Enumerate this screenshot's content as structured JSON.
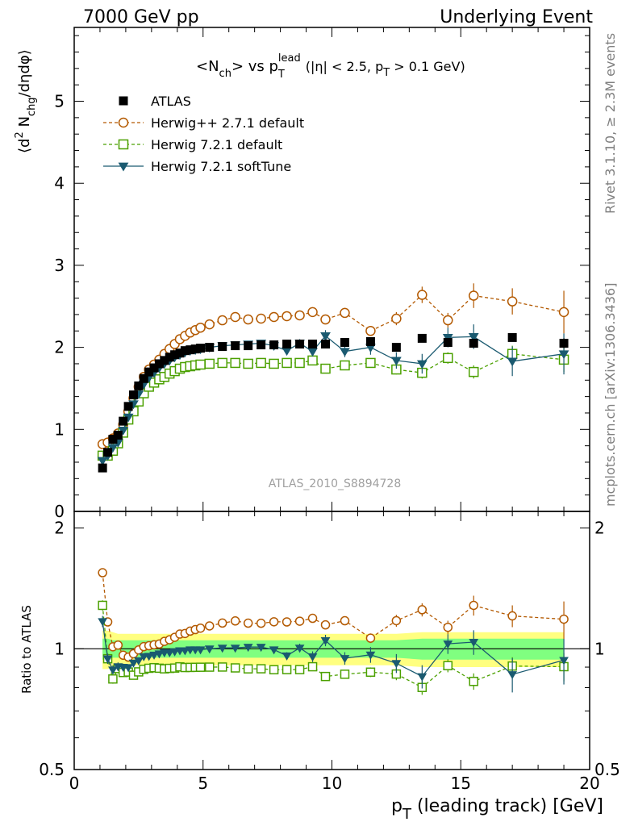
{
  "header": {
    "energy_label": "7000 GeV pp",
    "process_label": "Underlying Event"
  },
  "side_text": {
    "rivet": "Rivet 3.1.10, ≥ 2.3M events",
    "mcplots": "mcplots.cern.ch [arXiv:1306.3436]"
  },
  "plot_title": {
    "main": "<N",
    "sub_ch": "ch",
    "vs": "> vs p",
    "sub_T": "T",
    "sup_lead": "lead",
    "cuts_a": "(|η| < 2.5, p",
    "cuts_T": "T",
    "cuts_b": " > 0.1 GeV)"
  },
  "watermark": "ATLAS_2010_S8894728",
  "axes": {
    "main_ylabel_a": "⟨d",
    "main_ylabel_sup": "2",
    "main_ylabel_b": " N",
    "main_ylabel_sub": "chg",
    "main_ylabel_c": "/dηdφ⟩",
    "ratio_ylabel": "Ratio to ATLAS",
    "xlabel_a": "p",
    "xlabel_sub": "T",
    "xlabel_b": " (leading track) [GeV]"
  },
  "legend": [
    {
      "key": "data",
      "label": "ATLAS"
    },
    {
      "key": "h271",
      "label": "Herwig++ 2.7.1 default"
    },
    {
      "key": "h721",
      "label": "Herwig 7.2.1 default"
    },
    {
      "key": "soft",
      "label": "Herwig 7.2.1 softTune"
    }
  ],
  "colors": {
    "data": "#000000",
    "h271": "#b35900",
    "h721": "#4ba000",
    "soft": "#1a5a70",
    "band_outer": "#ffff80",
    "band_inner": "#80ff80"
  },
  "chart_data": {
    "type": "scatter",
    "xlim": [
      0,
      20
    ],
    "main_ylim": [
      0,
      5.9
    ],
    "ratio_ylim": [
      0.5,
      2.2
    ],
    "ratio_log_scale": true,
    "x_ticks": [
      "0",
      "5",
      "10",
      "15",
      "20"
    ],
    "main_y_ticks": [
      "0",
      "1",
      "2",
      "3",
      "4",
      "5"
    ],
    "ratio_y_ticks": [
      "0.5",
      "1",
      "2"
    ],
    "x": [
      1.1,
      1.3,
      1.5,
      1.7,
      1.9,
      2.1,
      2.3,
      2.5,
      2.7,
      2.9,
      3.1,
      3.3,
      3.5,
      3.7,
      3.9,
      4.1,
      4.3,
      4.5,
      4.7,
      4.9,
      5.25,
      5.75,
      6.25,
      6.75,
      7.25,
      7.75,
      8.25,
      8.75,
      9.25,
      9.75,
      10.5,
      11.5,
      12.5,
      13.5,
      14.5,
      15.5,
      17.0,
      19.0
    ],
    "series": [
      {
        "name": "ATLAS",
        "key": "data",
        "values": [
          0.53,
          0.72,
          0.88,
          0.93,
          1.1,
          1.28,
          1.42,
          1.53,
          1.62,
          1.7,
          1.75,
          1.8,
          1.84,
          1.88,
          1.91,
          1.93,
          1.96,
          1.97,
          1.98,
          1.99,
          2.0,
          2.01,
          2.02,
          2.02,
          2.03,
          2.03,
          2.04,
          2.04,
          2.04,
          2.04,
          2.06,
          2.07,
          2.0,
          2.11,
          2.06,
          2.05,
          2.12,
          2.05
        ],
        "errors": [
          0.02,
          0.02,
          0.02,
          0.02,
          0.02,
          0.02,
          0.02,
          0.02,
          0.02,
          0.02,
          0.02,
          0.02,
          0.02,
          0.02,
          0.02,
          0.02,
          0.02,
          0.02,
          0.02,
          0.02,
          0.02,
          0.02,
          0.02,
          0.02,
          0.02,
          0.02,
          0.02,
          0.02,
          0.03,
          0.03,
          0.03,
          0.03,
          0.04,
          0.04,
          0.05,
          0.05,
          0.05,
          0.06
        ]
      },
      {
        "name": "Herwig++ 2.7.1 default",
        "key": "h271",
        "values": [
          0.82,
          0.84,
          0.89,
          0.95,
          1.06,
          1.22,
          1.38,
          1.52,
          1.64,
          1.73,
          1.79,
          1.85,
          1.92,
          1.98,
          2.04,
          2.1,
          2.14,
          2.18,
          2.21,
          2.24,
          2.28,
          2.33,
          2.37,
          2.34,
          2.35,
          2.37,
          2.38,
          2.39,
          2.43,
          2.34,
          2.42,
          2.2,
          2.35,
          2.64,
          2.33,
          2.63,
          2.56,
          2.43
        ],
        "errors": [
          0.02,
          0.02,
          0.02,
          0.02,
          0.02,
          0.02,
          0.02,
          0.02,
          0.02,
          0.02,
          0.02,
          0.02,
          0.02,
          0.02,
          0.02,
          0.02,
          0.02,
          0.02,
          0.02,
          0.02,
          0.02,
          0.02,
          0.02,
          0.02,
          0.02,
          0.02,
          0.03,
          0.03,
          0.05,
          0.06,
          0.06,
          0.06,
          0.08,
          0.1,
          0.09,
          0.15,
          0.16,
          0.26
        ]
      },
      {
        "name": "Herwig 7.2.1 default",
        "key": "h721",
        "values": [
          0.68,
          0.68,
          0.74,
          0.83,
          0.96,
          1.12,
          1.22,
          1.34,
          1.44,
          1.52,
          1.57,
          1.61,
          1.64,
          1.68,
          1.71,
          1.74,
          1.76,
          1.77,
          1.78,
          1.79,
          1.8,
          1.81,
          1.81,
          1.8,
          1.81,
          1.8,
          1.81,
          1.81,
          1.84,
          1.74,
          1.78,
          1.81,
          1.73,
          1.69,
          1.87,
          1.7,
          1.92,
          1.85
        ],
        "errors": [
          0.02,
          0.02,
          0.02,
          0.02,
          0.02,
          0.02,
          0.02,
          0.02,
          0.02,
          0.02,
          0.02,
          0.02,
          0.02,
          0.02,
          0.02,
          0.02,
          0.02,
          0.02,
          0.02,
          0.02,
          0.02,
          0.02,
          0.02,
          0.02,
          0.02,
          0.02,
          0.02,
          0.03,
          0.04,
          0.04,
          0.04,
          0.05,
          0.06,
          0.07,
          0.07,
          0.08,
          0.1,
          0.15
        ]
      },
      {
        "name": "Herwig 7.2.1 softTune",
        "key": "soft",
        "values": [
          0.62,
          0.68,
          0.78,
          0.84,
          0.99,
          1.15,
          1.31,
          1.43,
          1.55,
          1.63,
          1.69,
          1.75,
          1.8,
          1.84,
          1.88,
          1.91,
          1.94,
          1.96,
          1.97,
          1.98,
          2.0,
          2.02,
          2.03,
          2.04,
          2.05,
          2.02,
          1.96,
          2.05,
          1.95,
          2.14,
          1.95,
          2.0,
          1.84,
          1.8,
          2.12,
          2.13,
          1.83,
          1.92
        ],
        "errors": [
          0.02,
          0.02,
          0.02,
          0.02,
          0.02,
          0.02,
          0.02,
          0.02,
          0.02,
          0.02,
          0.02,
          0.02,
          0.02,
          0.02,
          0.02,
          0.02,
          0.02,
          0.02,
          0.02,
          0.02,
          0.02,
          0.02,
          0.02,
          0.02,
          0.03,
          0.03,
          0.04,
          0.05,
          0.06,
          0.07,
          0.07,
          0.09,
          0.1,
          0.12,
          0.12,
          0.15,
          0.18,
          0.25
        ]
      }
    ],
    "ratio_band_outer": [
      0.11,
      0.11,
      0.1,
      0.09,
      0.09,
      0.09,
      0.09,
      0.09,
      0.09,
      0.09,
      0.09,
      0.09,
      0.09,
      0.09,
      0.09,
      0.09,
      0.09,
      0.09,
      0.09,
      0.09,
      0.09,
      0.09,
      0.09,
      0.09,
      0.09,
      0.09,
      0.09,
      0.09,
      0.09,
      0.09,
      0.09,
      0.09,
      0.09,
      0.1,
      0.1,
      0.1,
      0.1,
      0.1
    ],
    "ratio_band_inner": [
      0.06,
      0.06,
      0.05,
      0.05,
      0.05,
      0.05,
      0.05,
      0.05,
      0.05,
      0.05,
      0.05,
      0.05,
      0.05,
      0.05,
      0.05,
      0.05,
      0.05,
      0.05,
      0.05,
      0.05,
      0.05,
      0.05,
      0.05,
      0.05,
      0.05,
      0.05,
      0.05,
      0.05,
      0.05,
      0.05,
      0.05,
      0.05,
      0.05,
      0.06,
      0.06,
      0.06,
      0.06,
      0.06
    ]
  }
}
